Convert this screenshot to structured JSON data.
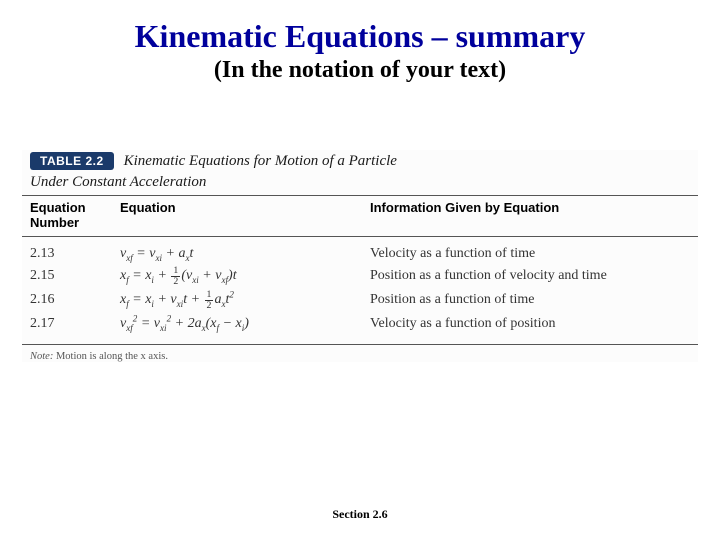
{
  "title": "Kinematic Equations – summary",
  "subtitle": "(In the notation of your text)",
  "table": {
    "pill": "TABLE 2.2",
    "caption": "Kinematic Equations for Motion of a Particle",
    "subcaption": "Under Constant Acceleration",
    "columns": {
      "num": "Equation\nNumber",
      "eq": "Equation",
      "info": "Information Given by Equation"
    },
    "rows": [
      {
        "num": "2.13",
        "info": "Velocity as a function of time"
      },
      {
        "num": "2.15",
        "info": "Position as a function of velocity and time"
      },
      {
        "num": "2.16",
        "info": "Position as a function of time"
      },
      {
        "num": "2.17",
        "info": "Velocity as a function of position"
      }
    ],
    "note_label": "Note:",
    "note_text": " Motion is along the x axis."
  },
  "footer": "Section 2.6",
  "colors": {
    "title": "#00009c",
    "pill_bg": "#1a3a6a",
    "pill_fg": "#ffffff",
    "rule": "#555555",
    "body_text": "#333333",
    "background": "#ffffff"
  }
}
